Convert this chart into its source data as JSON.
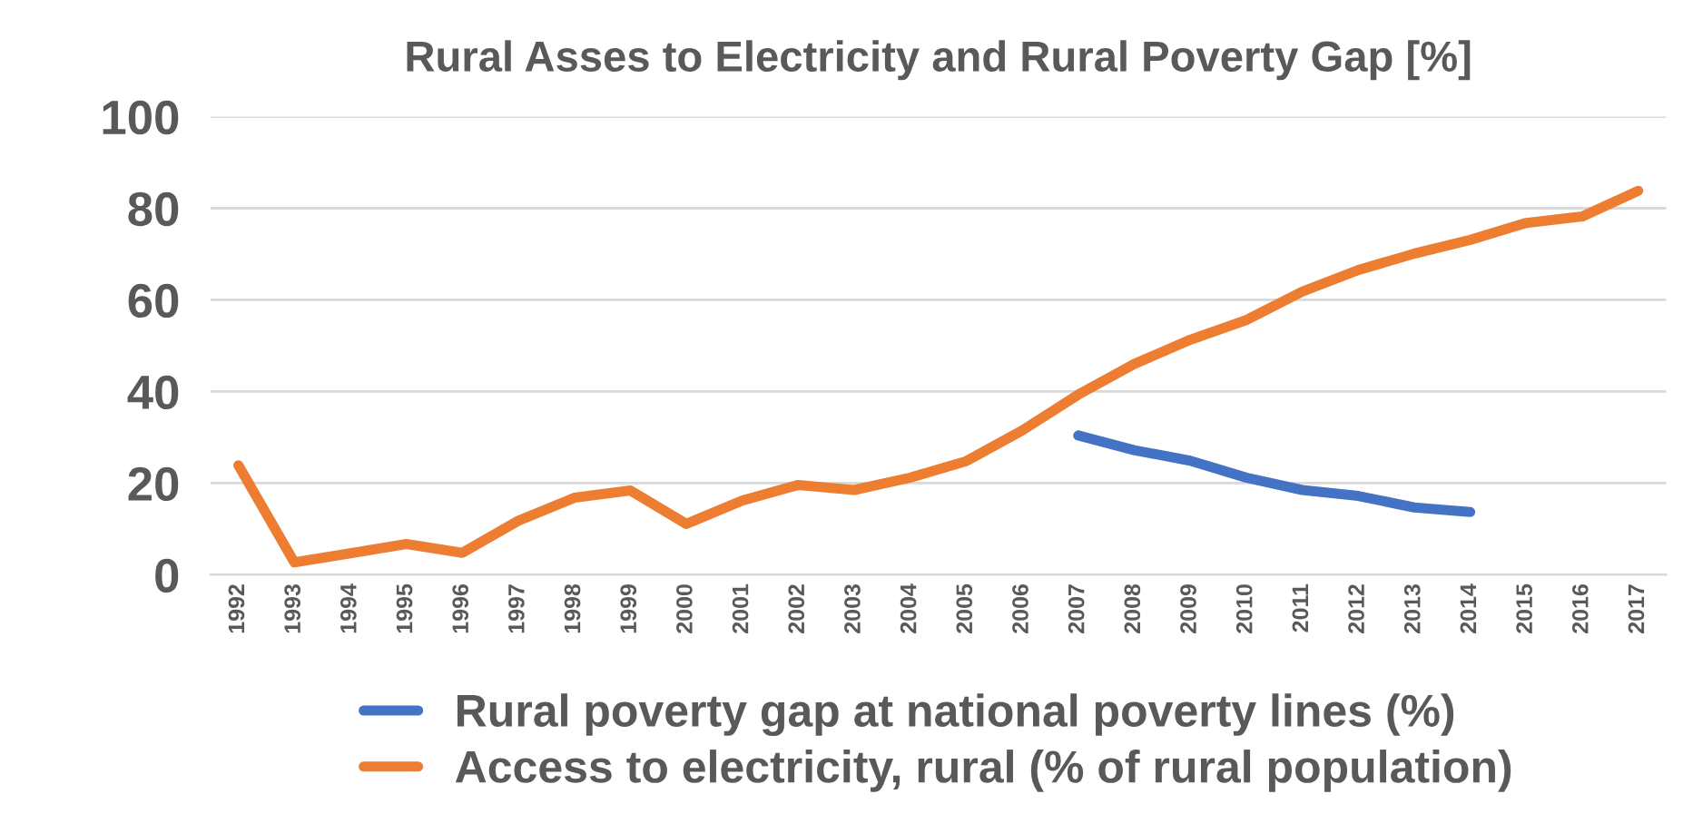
{
  "chart_data": {
    "type": "line",
    "title": "Rural Asses to Electricity and Rural Poverty Gap [%]",
    "categories": [
      "1992",
      "1993",
      "1994",
      "1995",
      "1996",
      "1997",
      "1998",
      "1999",
      "2000",
      "2001",
      "2002",
      "2003",
      "2004",
      "2005",
      "2006",
      "2007",
      "2008",
      "2009",
      "2010",
      "2011",
      "2012",
      "2013",
      "2014",
      "2015",
      "2016",
      "2017"
    ],
    "series": [
      {
        "name": "Rural poverty gap at national poverty lines (%)",
        "color": "#4472c4",
        "values": [
          null,
          null,
          null,
          null,
          null,
          null,
          null,
          null,
          null,
          null,
          null,
          null,
          null,
          null,
          null,
          30.4,
          27.2,
          24.9,
          21.2,
          18.5,
          17.2,
          14.7,
          13.7,
          null,
          null,
          null
        ]
      },
      {
        "name": "Access to electricity, rural (% of rural population)",
        "color": "#ed7d31",
        "values": [
          23.9,
          2.7,
          4.7,
          6.7,
          4.8,
          11.8,
          16.8,
          18.4,
          11.1,
          16.2,
          19.6,
          18.5,
          21.2,
          24.8,
          31.5,
          39.3,
          46.0,
          51.3,
          55.6,
          61.8,
          66.5,
          70.1,
          73.1,
          76.8,
          78.2,
          83.8
        ]
      }
    ],
    "ylim": [
      0,
      100
    ],
    "yticks": [
      0,
      20,
      40,
      60,
      80,
      100
    ],
    "grid": "y",
    "legend": "bottom",
    "marker": "none",
    "line_style": "solid"
  }
}
